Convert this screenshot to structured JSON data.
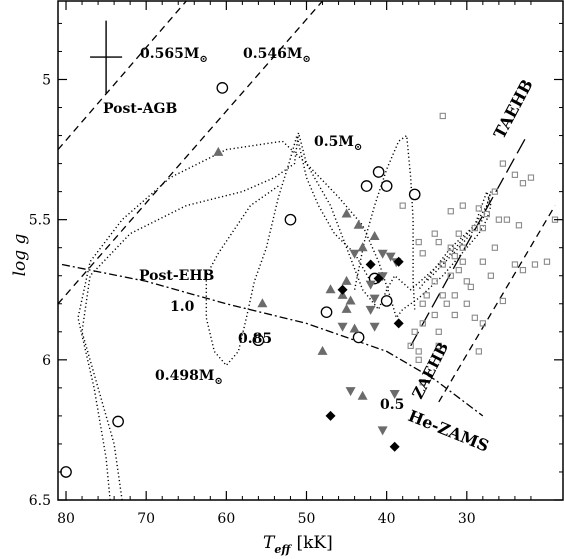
{
  "chart_data": {
    "type": "scatter",
    "xlabel_main": "T",
    "xlabel_sub": "eff",
    "xlabel_unit": "[kK]",
    "ylabel": "log g",
    "xlim": [
      81,
      18
    ],
    "ylim": [
      6.5,
      4.72
    ],
    "xticks": [
      80,
      70,
      60,
      50,
      40,
      30
    ],
    "yticks": [
      5,
      5.5,
      6,
      6.5
    ],
    "error_bar": {
      "teff": 75,
      "logg": 4.92,
      "dteff": 2.0,
      "dlogg": 0.13
    },
    "lines": [
      {
        "name": "",
        "style": "dashed",
        "points": [
          [
            81,
            5.25
          ],
          [
            65,
            4.72
          ]
        ]
      },
      {
        "name": "",
        "style": "dashed",
        "points": [
          [
            81,
            5.8
          ],
          [
            48,
            4.72
          ]
        ]
      },
      {
        "name": "",
        "style": "longdash",
        "points": [
          [
            37,
            5.95
          ],
          [
            22.5,
            5.2
          ]
        ]
      },
      {
        "name": "",
        "style": "dashed",
        "points": [
          [
            33.5,
            6.15
          ],
          [
            19,
            5.45
          ]
        ]
      },
      {
        "name": "",
        "style": "dashdot",
        "points": [
          [
            80.5,
            5.66
          ],
          [
            70,
            5.72
          ],
          [
            60,
            5.8
          ],
          [
            50,
            5.87
          ],
          [
            40,
            5.97
          ],
          [
            34,
            6.07
          ],
          [
            28,
            6.2
          ]
        ]
      },
      {
        "name": "",
        "style": "dotted",
        "points": [
          [
            73,
            6.5
          ],
          [
            74,
            6.3
          ],
          [
            76,
            6.1
          ],
          [
            78,
            5.9
          ],
          [
            77,
            5.7
          ],
          [
            72,
            5.55
          ],
          [
            65,
            5.45
          ],
          [
            58,
            5.4
          ],
          [
            54,
            5.35
          ],
          [
            51.5,
            5.3
          ],
          [
            51,
            5.19
          ],
          [
            50,
            5.3
          ],
          [
            46,
            5.42
          ],
          [
            43,
            5.52
          ],
          [
            41,
            5.65
          ],
          [
            39.5,
            5.78
          ],
          [
            38.8,
            5.85
          ],
          [
            38,
            5.82
          ],
          [
            36,
            5.78
          ],
          [
            33,
            5.7
          ],
          [
            30,
            5.6
          ],
          [
            28.5,
            5.55
          ],
          [
            27.5,
            5.5
          ],
          [
            27,
            5.45
          ],
          [
            27.5,
            5.4
          ],
          [
            29,
            5.52
          ],
          [
            32,
            5.6
          ],
          [
            36,
            5.75
          ]
        ]
      },
      {
        "name": "",
        "style": "dotted",
        "points": [
          [
            74.5,
            6.5
          ],
          [
            75,
            6.35
          ],
          [
            76.5,
            6.1
          ],
          [
            78.5,
            5.85
          ],
          [
            77,
            5.65
          ],
          [
            73,
            5.5
          ],
          [
            67,
            5.35
          ],
          [
            60,
            5.25
          ],
          [
            53,
            5.22
          ],
          [
            50,
            5.3
          ],
          [
            47,
            5.45
          ],
          [
            45,
            5.6
          ],
          [
            43,
            5.75
          ],
          [
            41,
            5.82
          ],
          [
            40,
            5.75
          ],
          [
            39,
            5.7
          ],
          [
            37,
            5.75
          ],
          [
            35,
            5.7
          ],
          [
            32,
            5.62
          ],
          [
            29,
            5.52
          ],
          [
            27.5,
            5.45
          ],
          [
            27,
            5.4
          ],
          [
            28,
            5.5
          ],
          [
            31,
            5.6
          ],
          [
            35,
            5.72
          ]
        ]
      },
      {
        "name": "",
        "style": "dotted",
        "points": [
          [
            42,
            5.72
          ],
          [
            44,
            5.62
          ],
          [
            46.5,
            5.55
          ],
          [
            48.5,
            5.45
          ],
          [
            50,
            5.35
          ],
          [
            51.2,
            5.2
          ],
          [
            52.2,
            5.3
          ],
          [
            53.5,
            5.42
          ],
          [
            55,
            5.6
          ],
          [
            56.5,
            5.72
          ],
          [
            57.5,
            5.85
          ],
          [
            58.5,
            5.97
          ],
          [
            60,
            6.02
          ],
          [
            61.5,
            5.97
          ],
          [
            62.5,
            5.85
          ],
          [
            62.5,
            5.7
          ],
          [
            61,
            5.62
          ],
          [
            57,
            5.45
          ],
          [
            53.5,
            5.38
          ]
        ]
      },
      {
        "name": "",
        "style": "dotted",
        "points": [
          [
            44,
            5.75
          ],
          [
            43.5,
            5.68
          ],
          [
            42.8,
            5.58
          ],
          [
            41.5,
            5.45
          ],
          [
            40,
            5.32
          ],
          [
            38.5,
            5.22
          ],
          [
            37.5,
            5.2
          ],
          [
            37,
            5.35
          ],
          [
            36.7,
            5.5
          ],
          [
            36.7,
            5.72
          ],
          [
            36.5,
            5.82
          ]
        ]
      }
    ],
    "series": [
      {
        "name": "",
        "marker": "circle-open",
        "color": "#000000",
        "points": [
          [
            60.5,
            5.03
          ],
          [
            41,
            5.33
          ],
          [
            42.5,
            5.38
          ],
          [
            40,
            5.38
          ],
          [
            36.5,
            5.41
          ],
          [
            52,
            5.5
          ],
          [
            41.5,
            5.71
          ],
          [
            40,
            5.79
          ],
          [
            47.5,
            5.83
          ],
          [
            56,
            5.93
          ],
          [
            43.5,
            5.92
          ],
          [
            73.5,
            6.22
          ],
          [
            80,
            6.4
          ]
        ]
      },
      {
        "name": "",
        "marker": "triangle-up",
        "color": "#6b6b6b",
        "points": [
          [
            61,
            5.26
          ],
          [
            45,
            5.48
          ],
          [
            43.5,
            5.52
          ],
          [
            41.5,
            5.56
          ],
          [
            43,
            5.6
          ],
          [
            45,
            5.72
          ],
          [
            47,
            5.75
          ],
          [
            45.5,
            5.77
          ],
          [
            44.5,
            5.79
          ],
          [
            45,
            5.82
          ],
          [
            55.5,
            5.8
          ],
          [
            44,
            5.89
          ],
          [
            48,
            5.97
          ],
          [
            43,
            6.13
          ]
        ]
      },
      {
        "name": "",
        "marker": "triangle-down",
        "color": "#6b6b6b",
        "points": [
          [
            44,
            5.62
          ],
          [
            40.5,
            5.62
          ],
          [
            39.5,
            5.63
          ],
          [
            38.8,
            5.65
          ],
          [
            40.5,
            5.7
          ],
          [
            42,
            5.73
          ],
          [
            41.5,
            5.78
          ],
          [
            42,
            5.82
          ],
          [
            41.5,
            5.88
          ],
          [
            45.5,
            5.88
          ],
          [
            44.5,
            6.11
          ],
          [
            39,
            6.12
          ],
          [
            40.5,
            6.25
          ]
        ]
      },
      {
        "name": "",
        "marker": "diamond",
        "color": "#000000",
        "points": [
          [
            42,
            5.66
          ],
          [
            38.5,
            5.65
          ],
          [
            41,
            5.71
          ],
          [
            45.5,
            5.75
          ],
          [
            38.5,
            5.87
          ],
          [
            47,
            6.2
          ],
          [
            39,
            6.31
          ]
        ]
      },
      {
        "name": "",
        "marker": "square-open",
        "color": "#8a8a8a",
        "points": [
          [
            33,
            5.13
          ],
          [
            25.5,
            5.3
          ],
          [
            24,
            5.34
          ],
          [
            23,
            5.37
          ],
          [
            22,
            5.35
          ],
          [
            26.5,
            5.4
          ],
          [
            28.5,
            5.46
          ],
          [
            30.5,
            5.45
          ],
          [
            32,
            5.47
          ],
          [
            19,
            5.5
          ],
          [
            23.5,
            5.52
          ],
          [
            25,
            5.5
          ],
          [
            26,
            5.5
          ],
          [
            27.5,
            5.48
          ],
          [
            28,
            5.53
          ],
          [
            29,
            5.53
          ],
          [
            31,
            5.55
          ],
          [
            34,
            5.55
          ],
          [
            33.5,
            5.58
          ],
          [
            32,
            5.6
          ],
          [
            31.5,
            5.63
          ],
          [
            30.5,
            5.6
          ],
          [
            33,
            5.66
          ],
          [
            32,
            5.7
          ],
          [
            31,
            5.68
          ],
          [
            30,
            5.72
          ],
          [
            29.5,
            5.74
          ],
          [
            26.5,
            5.6
          ],
          [
            28,
            5.65
          ],
          [
            27,
            5.7
          ],
          [
            24,
            5.66
          ],
          [
            21.5,
            5.66
          ],
          [
            20,
            5.65
          ],
          [
            23,
            5.68
          ],
          [
            34,
            5.72
          ],
          [
            35,
            5.77
          ],
          [
            33,
            5.77
          ],
          [
            31.5,
            5.77
          ],
          [
            30,
            5.8
          ],
          [
            25.5,
            5.79
          ],
          [
            35.5,
            5.8
          ],
          [
            34,
            5.84
          ],
          [
            31.5,
            5.84
          ],
          [
            29,
            5.85
          ],
          [
            28,
            5.87
          ],
          [
            36.5,
            5.9
          ],
          [
            33.5,
            5.9
          ],
          [
            35.5,
            5.87
          ],
          [
            37,
            5.95
          ],
          [
            36,
            5.97
          ],
          [
            33.5,
            5.95
          ],
          [
            28.5,
            5.97
          ],
          [
            36,
            6.0
          ],
          [
            35.5,
            6.08
          ],
          [
            32.5,
            5.8
          ],
          [
            38,
            5.45
          ],
          [
            36,
            5.58
          ],
          [
            35.5,
            5.62
          ],
          [
            30.5,
            5.65
          ]
        ]
      }
    ],
    "annotations": {
      "m0565": "0.565M",
      "m0546": "0.546M",
      "post_agb": "Post-AGB",
      "m05": "0.5M",
      "taehb": "TAEHB",
      "post_ehb": "Post-EHB",
      "lbl_10": "1.0",
      "lbl_085": "0.85",
      "m0498": "0.498M",
      "zaehb": "ZAEHB",
      "lbl_05": "0.5",
      "he_zams": "He-ZAMS",
      "sun": "⊙"
    }
  }
}
